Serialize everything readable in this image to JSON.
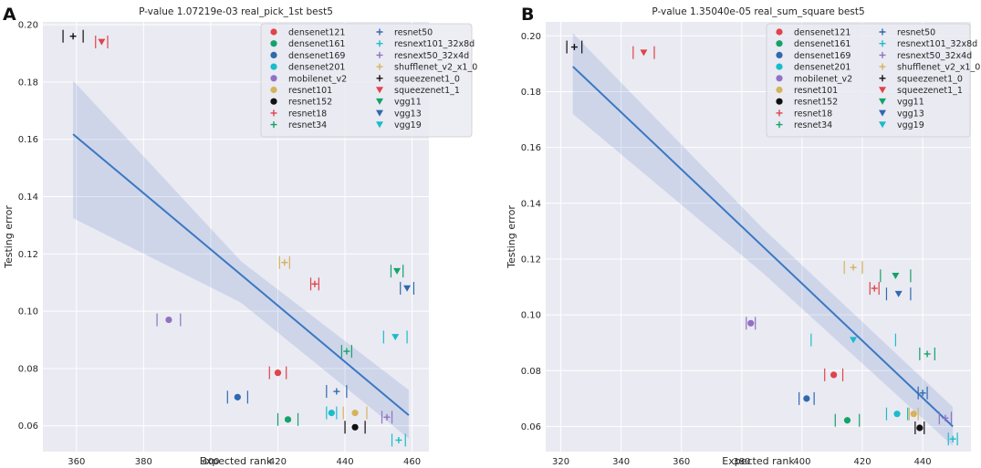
{
  "chart_data": [
    {
      "panel_label": "A",
      "type": "scatter",
      "title": "P-value 1.07219e-03 real_pick_1st best5",
      "xlabel": "Expected rank",
      "ylabel": "Testing error",
      "xlim": [
        350,
        465
      ],
      "ylim": [
        0.051,
        0.201
      ],
      "xticks": [
        360,
        380,
        400,
        420,
        440,
        460
      ],
      "yticks": [
        0.06,
        0.08,
        0.1,
        0.12,
        0.14,
        0.16,
        0.18,
        0.2
      ],
      "xtick_labels": [
        "360",
        "380",
        "400",
        "420",
        "440",
        "460"
      ],
      "ytick_labels": [
        "0.06",
        "0.08",
        "0.10",
        "0.12",
        "0.14",
        "0.16",
        "0.18",
        "0.20"
      ],
      "grid": true,
      "legend_position": "top-right",
      "regression": {
        "x": [
          359,
          459
        ],
        "y": [
          0.1618,
          0.0637
        ],
        "band_x": [
          359,
          409,
          459
        ],
        "band_upper": [
          0.1805,
          0.1175,
          0.0725
        ],
        "band_lower": [
          0.1325,
          0.103,
          0.0555
        ]
      },
      "series": [
        {
          "name": "densenet121",
          "marker": "o",
          "color": "#e0434a",
          "x": 420.0,
          "y": 0.0785,
          "xerr": 2.5
        },
        {
          "name": "densenet161",
          "marker": "o",
          "color": "#13a36a",
          "x": 423.0,
          "y": 0.0622,
          "xerr": 3.0
        },
        {
          "name": "densenet169",
          "marker": "o",
          "color": "#2e6ab0",
          "x": 408.0,
          "y": 0.07,
          "xerr": 3.0
        },
        {
          "name": "densenet201",
          "marker": "o",
          "color": "#1bbccb",
          "x": 436.0,
          "y": 0.0645,
          "xerr": 1.5
        },
        {
          "name": "mobilenet_v2",
          "marker": "o",
          "color": "#8f72c4",
          "x": 387.5,
          "y": 0.097,
          "xerr": 3.5
        },
        {
          "name": "resnet101",
          "marker": "o",
          "color": "#d4b45b",
          "x": 443.0,
          "y": 0.0645,
          "xerr": 3.5
        },
        {
          "name": "resnet152",
          "marker": "o",
          "color": "#111111",
          "x": 443.0,
          "y": 0.0595,
          "xerr": 3.0
        },
        {
          "name": "resnet18",
          "marker": "+",
          "color": "#e0434a",
          "x": 431.0,
          "y": 0.1095,
          "xerr": 1.2
        },
        {
          "name": "resnet34",
          "marker": "+",
          "color": "#13a36a",
          "x": 440.5,
          "y": 0.086,
          "xerr": 1.5
        },
        {
          "name": "resnet50",
          "marker": "+",
          "color": "#2e6ab0",
          "x": 437.5,
          "y": 0.072,
          "xerr": 3.0
        },
        {
          "name": "resnext101_32x8d",
          "marker": "+",
          "color": "#1bbccb",
          "x": 456.0,
          "y": 0.055,
          "xerr": 2.0
        },
        {
          "name": "resnext50_32x4d",
          "marker": "+",
          "color": "#8f72c4",
          "x": 452.5,
          "y": 0.063,
          "xerr": 1.5
        },
        {
          "name": "shufflenet_v2_x1_0",
          "marker": "+",
          "color": "#d4b45b",
          "x": 422.0,
          "y": 0.117,
          "xerr": 1.5
        },
        {
          "name": "squeezenet1_0",
          "marker": "+",
          "color": "#111111",
          "x": 359.0,
          "y": 0.196,
          "xerr": 3.0
        },
        {
          "name": "squeezenet1_1",
          "marker": "v",
          "color": "#e0434a",
          "x": 367.5,
          "y": 0.194,
          "xerr": 1.8
        },
        {
          "name": "vgg11",
          "marker": "v",
          "color": "#13a36a",
          "x": 455.5,
          "y": 0.114,
          "xerr": 1.8
        },
        {
          "name": "vgg13",
          "marker": "v",
          "color": "#2e6ab0",
          "x": 458.5,
          "y": 0.108,
          "xerr": 2.0
        },
        {
          "name": "vgg19",
          "marker": "v",
          "color": "#1bbccb",
          "x": 455.0,
          "y": 0.091,
          "xerr": 3.5
        }
      ]
    },
    {
      "panel_label": "B",
      "type": "scatter",
      "title": "P-value 1.35040e-05 real_sum_square best5",
      "xlabel": "Expected rank",
      "ylabel": "Testing error",
      "xlim": [
        315,
        456
      ],
      "ylim": [
        0.051,
        0.205
      ],
      "xticks": [
        320,
        340,
        360,
        380,
        400,
        420,
        440
      ],
      "yticks": [
        0.06,
        0.08,
        0.1,
        0.12,
        0.14,
        0.16,
        0.18,
        0.2
      ],
      "xtick_labels": [
        "320",
        "340",
        "360",
        "380",
        "400",
        "420",
        "440"
      ],
      "ytick_labels": [
        "0.06",
        "0.08",
        "0.10",
        "0.12",
        "0.14",
        "0.16",
        "0.18",
        "0.20"
      ],
      "grid": true,
      "legend_position": "top-right",
      "regression": {
        "x": [
          324,
          450
        ],
        "y": [
          0.189,
          0.06
        ],
        "band_x": [
          324,
          387,
          450
        ],
        "band_upper": [
          0.201,
          0.131,
          0.067
        ],
        "band_lower": [
          0.172,
          0.115,
          0.053
        ]
      },
      "series": [
        {
          "name": "densenet121",
          "marker": "o",
          "color": "#e0434a",
          "x": 410.5,
          "y": 0.0785,
          "xerr": 3.0
        },
        {
          "name": "densenet161",
          "marker": "o",
          "color": "#13a36a",
          "x": 415.0,
          "y": 0.0622,
          "xerr": 4.0
        },
        {
          "name": "densenet169",
          "marker": "o",
          "color": "#2e6ab0",
          "x": 401.5,
          "y": 0.07,
          "xerr": 2.5
        },
        {
          "name": "densenet201",
          "marker": "o",
          "color": "#1bbccb",
          "x": 431.5,
          "y": 0.0645,
          "xerr": 3.5
        },
        {
          "name": "mobilenet_v2",
          "marker": "o",
          "color": "#8f72c4",
          "x": 383.0,
          "y": 0.097,
          "xerr": 1.5
        },
        {
          "name": "resnet101",
          "marker": "o",
          "color": "#d4b45b",
          "x": 437.0,
          "y": 0.0645,
          "xerr": 1.5
        },
        {
          "name": "resnet152",
          "marker": "o",
          "color": "#111111",
          "x": 439.0,
          "y": 0.0595,
          "xerr": 1.5
        },
        {
          "name": "resnet18",
          "marker": "+",
          "color": "#e0434a",
          "x": 424.0,
          "y": 0.1095,
          "xerr": 1.5
        },
        {
          "name": "resnet34",
          "marker": "+",
          "color": "#13a36a",
          "x": 441.5,
          "y": 0.086,
          "xerr": 2.5
        },
        {
          "name": "resnet50",
          "marker": "+",
          "color": "#2e6ab0",
          "x": 440.0,
          "y": 0.072,
          "xerr": 1.5
        },
        {
          "name": "resnext101_32x8d",
          "marker": "+",
          "color": "#1bbccb",
          "x": 450.0,
          "y": 0.0555,
          "xerr": 1.5
        },
        {
          "name": "resnext50_32x4d",
          "marker": "+",
          "color": "#8f72c4",
          "x": 447.5,
          "y": 0.063,
          "xerr": 2.0
        },
        {
          "name": "shufflenet_v2_x1_0",
          "marker": "+",
          "color": "#d4b45b",
          "x": 417.0,
          "y": 0.117,
          "xerr": 3.0
        },
        {
          "name": "squeezenet1_0",
          "marker": "+",
          "color": "#111111",
          "x": 324.5,
          "y": 0.196,
          "xerr": 2.5
        },
        {
          "name": "squeezenet1_1",
          "marker": "v",
          "color": "#e0434a",
          "x": 347.5,
          "y": 0.194,
          "xerr": 3.5
        },
        {
          "name": "vgg11",
          "marker": "v",
          "color": "#13a36a",
          "x": 431.0,
          "y": 0.114,
          "xerr": 5.0
        },
        {
          "name": "vgg13",
          "marker": "v",
          "color": "#2e6ab0",
          "x": 432.0,
          "y": 0.1075,
          "xerr": 4.0
        },
        {
          "name": "vgg19",
          "marker": "v",
          "color": "#1bbccb",
          "x": 417.0,
          "y": 0.091,
          "xerr": 14.0
        }
      ]
    }
  ]
}
